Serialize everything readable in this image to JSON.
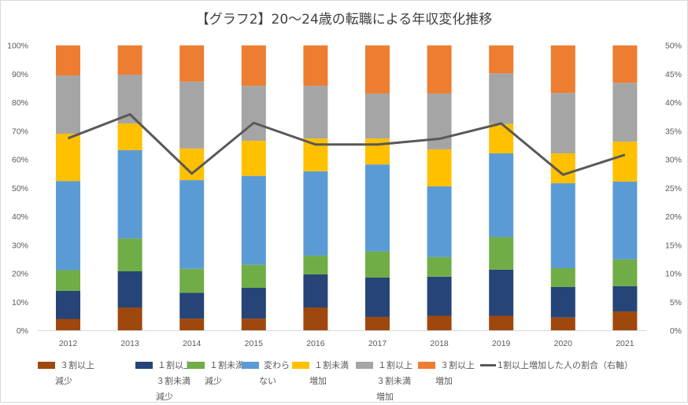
{
  "chart_data": {
    "type": "bar",
    "stacked": true,
    "title": "【グラフ2】20～24歳の転職による年収変化推移",
    "categories": [
      "2012",
      "2013",
      "2014",
      "2015",
      "2016",
      "2017",
      "2018",
      "2019",
      "2020",
      "2021"
    ],
    "ylim": [
      0,
      100
    ],
    "y_ticks": [
      "0%",
      "10%",
      "20%",
      "30%",
      "40%",
      "50%",
      "60%",
      "70%",
      "80%",
      "90%",
      "100%"
    ],
    "y2lim": [
      0,
      50
    ],
    "y2_ticks": [
      "0%",
      "5%",
      "10%",
      "15%",
      "20%",
      "25%",
      "30%",
      "35%",
      "40%",
      "45%",
      "50%"
    ],
    "grid": false,
    "legend_position": "bottom",
    "series": [
      {
        "name": "３割以上減少",
        "label_lines": [
          "３割以上",
          "減少"
        ],
        "color": "#9E480E",
        "values": [
          4.0,
          8.0,
          4.1,
          4.1,
          8.0,
          4.7,
          5.1,
          5.1,
          4.5,
          6.6
        ]
      },
      {
        "name": "１割以上３割未満減少",
        "label_lines": [
          "１割以上",
          "３割未満",
          "減少"
        ],
        "color": "#264478",
        "values": [
          9.8,
          12.7,
          9.1,
          10.8,
          11.6,
          13.8,
          13.7,
          16.2,
          10.7,
          8.9
        ]
      },
      {
        "name": "１割未満減少",
        "label_lines": [
          "１割未満",
          "減少"
        ],
        "color": "#70AD47",
        "values": [
          7.3,
          11.5,
          8.4,
          8.1,
          6.6,
          9.2,
          6.9,
          11.4,
          6.6,
          9.4
        ]
      },
      {
        "name": "変わらない",
        "label_lines": [
          "変わら",
          "ない"
        ],
        "color": "#5B9BD5",
        "values": [
          31.3,
          31.0,
          31.1,
          31.2,
          29.6,
          30.5,
          24.8,
          29.4,
          29.8,
          27.3
        ]
      },
      {
        "name": "１割未満増加",
        "label_lines": [
          "１割未満",
          "増加"
        ],
        "color": "#FFC000",
        "values": [
          16.6,
          9.4,
          11.1,
          12.3,
          11.5,
          9.1,
          13.0,
          10.3,
          10.5,
          14.0
        ]
      },
      {
        "name": "１割以上３割未満増加",
        "label_lines": [
          "１割以上",
          "３割未満",
          "増加"
        ],
        "color": "#A5A5A5",
        "values": [
          20.4,
          17.1,
          23.5,
          19.3,
          18.5,
          15.8,
          19.6,
          17.8,
          21.2,
          20.7
        ]
      },
      {
        "name": "３割以上増加",
        "label_lines": [
          "３割以上",
          "増加"
        ],
        "color": "#ED7D31",
        "values": [
          10.6,
          10.3,
          12.7,
          14.2,
          14.2,
          16.9,
          16.9,
          9.8,
          16.7,
          13.1
        ]
      }
    ],
    "line_series": {
      "name": "1割以上増加した人の割合（右軸）",
      "type": "line",
      "axis": "right",
      "color": "#595959",
      "values": [
        33.7,
        37.9,
        27.5,
        36.4,
        32.6,
        32.6,
        33.6,
        36.3,
        27.3,
        30.8
      ]
    }
  }
}
